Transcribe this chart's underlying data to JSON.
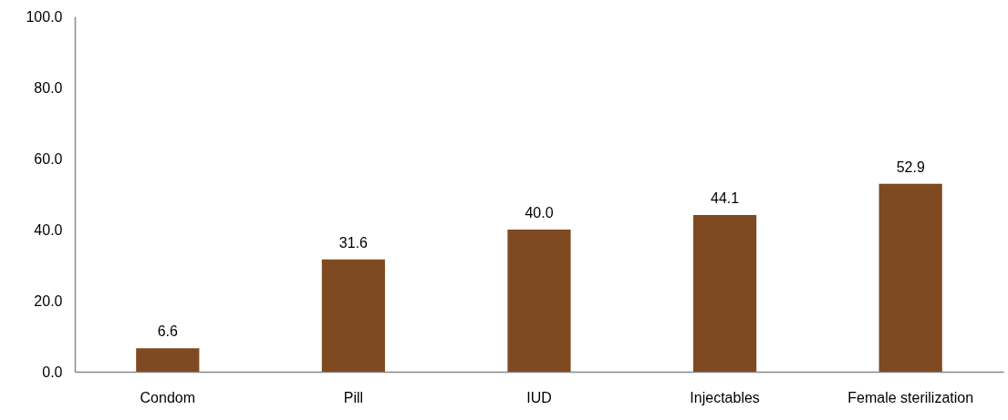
{
  "chart_data": {
    "type": "bar",
    "categories": [
      "Condom",
      "Pill",
      "IUD",
      "Injectables",
      "Female sterilization"
    ],
    "values": [
      6.6,
      31.6,
      40.0,
      44.1,
      52.9
    ],
    "color": "#7f4a22",
    "ylim": [
      0,
      100
    ],
    "yticks": [
      {
        "value": 0,
        "label": "0.0"
      },
      {
        "value": 20,
        "label": "20.0"
      },
      {
        "value": 40,
        "label": "40.0"
      },
      {
        "value": 60,
        "label": "60.0"
      },
      {
        "value": 80,
        "label": "80.0"
      },
      {
        "value": 100,
        "label": "100.0"
      }
    ],
    "value_labels": [
      "6.6",
      "31.6",
      "40.0",
      "44.1",
      "52.9"
    ],
    "grid": false
  }
}
